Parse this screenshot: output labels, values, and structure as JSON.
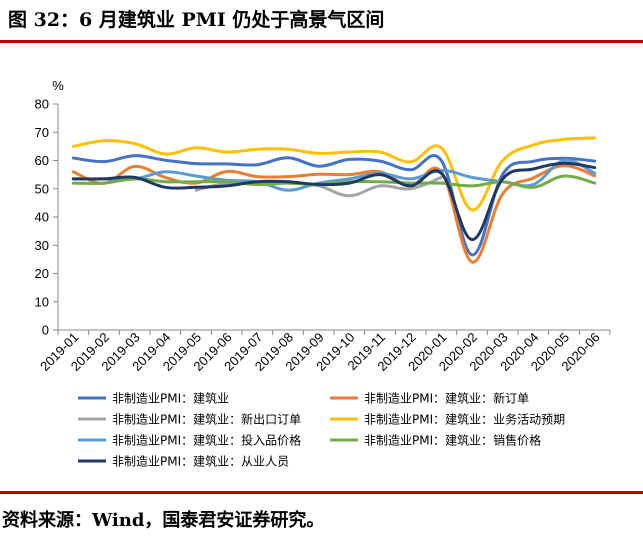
{
  "header": {
    "title": "图 32：6 月建筑业 PMI 仍处于高景气区间"
  },
  "footer": {
    "source": "资料来源：Wind，国泰君安证券研究。"
  },
  "chart_data": {
    "type": "line",
    "title": "",
    "ylabel": "%",
    "xlabel": "",
    "ylim": [
      0,
      80
    ],
    "yticks": [
      0,
      10,
      20,
      30,
      40,
      50,
      60,
      70,
      80
    ],
    "categories": [
      "2019-01",
      "2019-02",
      "2019-03",
      "2019-04",
      "2019-05",
      "2019-06",
      "2019-07",
      "2019-08",
      "2019-09",
      "2019-10",
      "2019-11",
      "2019-12",
      "2020-01",
      "2020-02",
      "2020-03",
      "2020-04",
      "2020-05",
      "2020-06"
    ],
    "grid": false,
    "legend_position": "bottom",
    "series": [
      {
        "name": "非制造业PMI：建筑业",
        "color": "#4472c4",
        "values": [
          60.9,
          59.6,
          61.7,
          60.1,
          58.9,
          58.8,
          58.5,
          61.0,
          58.0,
          60.4,
          59.8,
          56.7,
          60.0,
          26.6,
          55.1,
          59.7,
          60.8,
          59.8
        ]
      },
      {
        "name": "非制造业PMI：建筑业：新订单",
        "color": "#ed7d31",
        "values": [
          56.0,
          51.9,
          57.9,
          54.0,
          52.0,
          56.1,
          54.3,
          54.3,
          55.1,
          55.0,
          56.0,
          51.1,
          56.0,
          24.1,
          48.2,
          53.8,
          58.2,
          54.6
        ]
      },
      {
        "name": "非制造业PMI：建筑业：新出口订单",
        "color": "#a5a5a5",
        "values": [
          null,
          null,
          null,
          null,
          49.5,
          52.0,
          52.0,
          52.0,
          51.0,
          47.5,
          51.0,
          50.0,
          54.0,
          null,
          null,
          null,
          null,
          null
        ]
      },
      {
        "name": "非制造业PMI：建筑业：业务活动预期",
        "color": "#ffc000",
        "values": [
          65.0,
          67.0,
          66.0,
          62.3,
          64.5,
          63.0,
          64.0,
          64.0,
          62.5,
          63.0,
          63.0,
          59.5,
          64.5,
          42.5,
          60.0,
          65.5,
          67.5,
          68.0
        ]
      },
      {
        "name": "非制造业PMI：建筑业：投入品价格",
        "color": "#5b9bd5",
        "values": [
          53.5,
          53.5,
          53.5,
          56.0,
          54.5,
          53.0,
          52.5,
          49.5,
          52.0,
          53.5,
          55.5,
          53.5,
          56.5,
          54.0,
          52.5,
          51.5,
          60.0,
          55.5
        ]
      },
      {
        "name": "非制造业PMI：建筑业：销售价格",
        "color": "#70ad47",
        "values": [
          52.0,
          52.0,
          53.5,
          52.5,
          52.5,
          52.5,
          51.5,
          52.0,
          51.5,
          52.5,
          52.5,
          52.0,
          52.0,
          51.0,
          52.5,
          50.5,
          54.5,
          52.0
        ]
      },
      {
        "name": "非制造业PMI：建筑业：从业人员",
        "color": "#1f3864",
        "values": [
          53.5,
          53.5,
          54.0,
          50.5,
          50.5,
          51.0,
          52.5,
          52.5,
          51.5,
          52.0,
          55.0,
          51.0,
          55.5,
          32.0,
          53.5,
          57.0,
          59.0,
          57.5
        ]
      }
    ]
  }
}
